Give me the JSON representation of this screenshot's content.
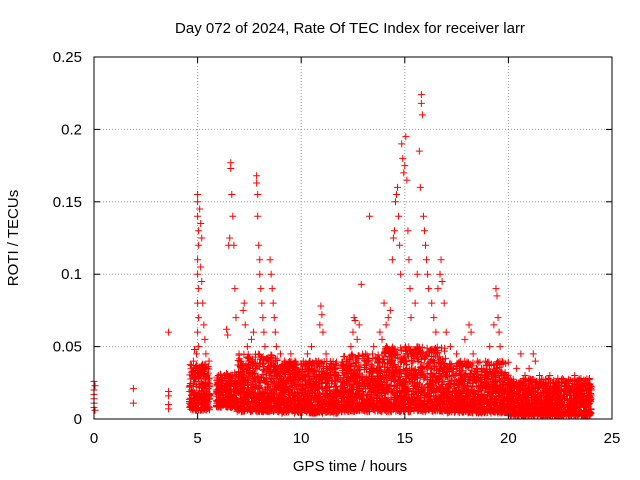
{
  "chart_data": {
    "type": "scatter",
    "title": "Day 072 of 2024, Rate Of TEC Index for receiver larr",
    "xlabel": "GPS time / hours",
    "ylabel": "ROTI / TECUs",
    "xlim": [
      0,
      25
    ],
    "ylim": [
      0,
      0.25
    ],
    "xticks": [
      0,
      5,
      10,
      15,
      20,
      25
    ],
    "yticks": [
      0,
      0.05,
      0.1,
      0.15,
      0.2,
      0.25
    ],
    "xtick_labels": [
      "0",
      "5",
      "10",
      "15",
      "20",
      "25"
    ],
    "ytick_labels": [
      "0",
      "0.05",
      "0.1",
      "0.15",
      "0.2",
      "0.25"
    ],
    "grid": true,
    "marker": "+",
    "series": [
      {
        "color": "#ff0000",
        "points": [
          [
            0.0,
            0.026
          ],
          [
            0.0,
            0.02
          ],
          [
            0.0,
            0.017
          ],
          [
            0.0,
            0.014
          ],
          [
            0.0,
            0.011
          ],
          [
            0.0,
            0.008
          ],
          [
            0.05,
            0.023
          ],
          [
            0.05,
            0.006
          ],
          [
            1.9,
            0.021
          ],
          [
            1.9,
            0.011
          ],
          [
            3.6,
            0.06
          ],
          [
            3.6,
            0.019
          ],
          [
            3.6,
            0.016
          ],
          [
            3.6,
            0.01
          ],
          [
            3.6,
            0.007
          ],
          [
            4.65,
            0.012
          ],
          [
            4.7,
            0.02
          ],
          [
            4.75,
            0.03
          ],
          [
            4.8,
            0.04
          ],
          [
            4.85,
            0.048
          ],
          [
            4.9,
            0.035
          ],
          [
            4.95,
            0.045
          ],
          [
            5.0,
            0.155
          ],
          [
            5.0,
            0.15
          ],
          [
            5.0,
            0.14
          ],
          [
            5.05,
            0.13
          ],
          [
            5.05,
            0.12
          ],
          [
            5.0,
            0.11
          ],
          [
            5.0,
            0.1
          ],
          [
            5.05,
            0.09
          ],
          [
            5.0,
            0.08
          ],
          [
            5.05,
            0.07
          ],
          [
            5.0,
            0.06
          ],
          [
            5.05,
            0.05
          ],
          [
            5.1,
            0.145
          ],
          [
            5.15,
            0.135
          ],
          [
            5.2,
            0.125
          ],
          [
            5.15,
            0.105
          ],
          [
            5.2,
            0.095
          ],
          [
            5.25,
            0.08
          ],
          [
            5.3,
            0.065
          ],
          [
            5.35,
            0.055
          ],
          [
            5.4,
            0.045
          ],
          [
            5.45,
            0.035
          ],
          [
            5.5,
            0.025
          ],
          [
            5.55,
            0.04
          ],
          [
            5.9,
            0.02
          ],
          [
            6.0,
            0.03
          ],
          [
            6.1,
            0.025
          ],
          [
            6.2,
            0.02
          ],
          [
            6.3,
            0.03
          ],
          [
            6.4,
            0.062
          ],
          [
            6.45,
            0.058
          ],
          [
            6.5,
            0.12
          ],
          [
            6.55,
            0.125
          ],
          [
            6.6,
            0.177
          ],
          [
            6.6,
            0.173
          ],
          [
            6.65,
            0.155
          ],
          [
            6.7,
            0.14
          ],
          [
            6.75,
            0.12
          ],
          [
            6.8,
            0.09
          ],
          [
            6.85,
            0.07
          ],
          [
            7.0,
            0.045
          ],
          [
            7.1,
            0.04
          ],
          [
            7.2,
            0.075
          ],
          [
            7.25,
            0.08
          ],
          [
            7.3,
            0.065
          ],
          [
            7.4,
            0.05
          ],
          [
            7.5,
            0.035
          ],
          [
            7.6,
            0.055
          ],
          [
            7.7,
            0.06
          ],
          [
            7.85,
            0.168
          ],
          [
            7.85,
            0.163
          ],
          [
            7.9,
            0.155
          ],
          [
            7.9,
            0.14
          ],
          [
            7.95,
            0.12
          ],
          [
            8.0,
            0.11
          ],
          [
            8.0,
            0.1
          ],
          [
            8.05,
            0.09
          ],
          [
            8.1,
            0.08
          ],
          [
            8.15,
            0.07
          ],
          [
            8.2,
            0.06
          ],
          [
            8.25,
            0.05
          ],
          [
            8.3,
            0.04
          ],
          [
            8.5,
            0.11
          ],
          [
            8.55,
            0.1
          ],
          [
            8.6,
            0.09
          ],
          [
            8.65,
            0.08
          ],
          [
            8.7,
            0.07
          ],
          [
            8.75,
            0.06
          ],
          [
            8.8,
            0.05
          ],
          [
            9.0,
            0.045
          ],
          [
            9.2,
            0.04
          ],
          [
            9.4,
            0.035
          ],
          [
            9.5,
            0.045
          ],
          [
            9.7,
            0.04
          ],
          [
            9.9,
            0.03
          ],
          [
            10.1,
            0.04
          ],
          [
            10.3,
            0.045
          ],
          [
            10.5,
            0.05
          ],
          [
            10.7,
            0.04
          ],
          [
            10.9,
            0.065
          ],
          [
            10.95,
            0.078
          ],
          [
            11.0,
            0.072
          ],
          [
            11.05,
            0.06
          ],
          [
            11.2,
            0.045
          ],
          [
            11.4,
            0.035
          ],
          [
            11.6,
            0.03
          ],
          [
            12.0,
            0.035
          ],
          [
            12.2,
            0.04
          ],
          [
            12.4,
            0.05
          ],
          [
            12.5,
            0.06
          ],
          [
            12.55,
            0.07
          ],
          [
            12.6,
            0.068
          ],
          [
            12.7,
            0.055
          ],
          [
            12.8,
            0.065
          ],
          [
            12.9,
            0.093
          ],
          [
            13.1,
            0.045
          ],
          [
            13.3,
            0.14
          ],
          [
            13.5,
            0.05
          ],
          [
            13.7,
            0.04
          ],
          [
            13.8,
            0.06
          ],
          [
            13.9,
            0.055
          ],
          [
            14.0,
            0.08
          ],
          [
            14.1,
            0.065
          ],
          [
            14.2,
            0.07
          ],
          [
            14.3,
            0.075
          ],
          [
            14.4,
            0.11
          ],
          [
            14.45,
            0.125
          ],
          [
            14.5,
            0.13
          ],
          [
            14.55,
            0.15
          ],
          [
            14.6,
            0.155
          ],
          [
            14.65,
            0.16
          ],
          [
            14.7,
            0.14
          ],
          [
            14.75,
            0.12
          ],
          [
            14.8,
            0.1
          ],
          [
            14.85,
            0.19
          ],
          [
            14.9,
            0.18
          ],
          [
            14.95,
            0.17
          ],
          [
            15.0,
            0.175
          ],
          [
            15.05,
            0.195
          ],
          [
            15.1,
            0.165
          ],
          [
            15.15,
            0.13
          ],
          [
            15.2,
            0.11
          ],
          [
            15.25,
            0.09
          ],
          [
            15.3,
            0.07
          ],
          [
            15.5,
            0.08
          ],
          [
            15.6,
            0.1
          ],
          [
            15.7,
            0.185
          ],
          [
            15.75,
            0.16
          ],
          [
            15.8,
            0.224
          ],
          [
            15.8,
            0.218
          ],
          [
            15.85,
            0.21
          ],
          [
            15.9,
            0.14
          ],
          [
            15.95,
            0.13
          ],
          [
            16.0,
            0.12
          ],
          [
            16.05,
            0.11
          ],
          [
            16.1,
            0.1
          ],
          [
            16.15,
            0.09
          ],
          [
            16.3,
            0.08
          ],
          [
            16.4,
            0.07
          ],
          [
            16.5,
            0.06
          ],
          [
            16.6,
            0.09
          ],
          [
            16.7,
            0.1
          ],
          [
            16.75,
            0.11
          ],
          [
            16.8,
            0.095
          ],
          [
            16.9,
            0.08
          ],
          [
            17.0,
            0.06
          ],
          [
            17.2,
            0.05
          ],
          [
            17.5,
            0.045
          ],
          [
            17.7,
            0.04
          ],
          [
            17.9,
            0.055
          ],
          [
            18.1,
            0.065
          ],
          [
            18.2,
            0.06
          ],
          [
            18.3,
            0.045
          ],
          [
            18.5,
            0.04
          ],
          [
            18.7,
            0.035
          ],
          [
            18.9,
            0.04
          ],
          [
            19.1,
            0.05
          ],
          [
            19.3,
            0.065
          ],
          [
            19.4,
            0.09
          ],
          [
            19.45,
            0.085
          ],
          [
            19.5,
            0.07
          ],
          [
            19.55,
            0.06
          ],
          [
            19.6,
            0.05
          ],
          [
            19.7,
            0.04
          ],
          [
            19.9,
            0.03
          ],
          [
            20.2,
            0.025
          ],
          [
            20.4,
            0.035
          ],
          [
            20.6,
            0.045
          ],
          [
            20.8,
            0.03
          ],
          [
            21.0,
            0.035
          ],
          [
            21.2,
            0.045
          ],
          [
            21.3,
            0.04
          ],
          [
            21.5,
            0.03
          ],
          [
            21.7,
            0.025
          ],
          [
            22.0,
            0.03
          ],
          [
            22.3,
            0.025
          ],
          [
            22.6,
            0.028
          ],
          [
            22.9,
            0.022
          ],
          [
            23.2,
            0.03
          ],
          [
            23.5,
            0.028
          ],
          [
            23.8,
            0.025
          ],
          [
            24.0,
            0.02
          ]
        ],
        "dense_bands": [
          [
            4.6,
            5.6,
            0.006,
            0.038
          ],
          [
            5.9,
            6.9,
            0.008,
            0.032
          ],
          [
            6.9,
            8.9,
            0.005,
            0.045
          ],
          [
            8.9,
            11.8,
            0.004,
            0.04
          ],
          [
            11.9,
            14.0,
            0.005,
            0.045
          ],
          [
            14.0,
            17.0,
            0.005,
            0.05
          ],
          [
            17.0,
            20.0,
            0.004,
            0.04
          ],
          [
            20.0,
            24.0,
            0.002,
            0.028
          ]
        ]
      }
    ]
  }
}
